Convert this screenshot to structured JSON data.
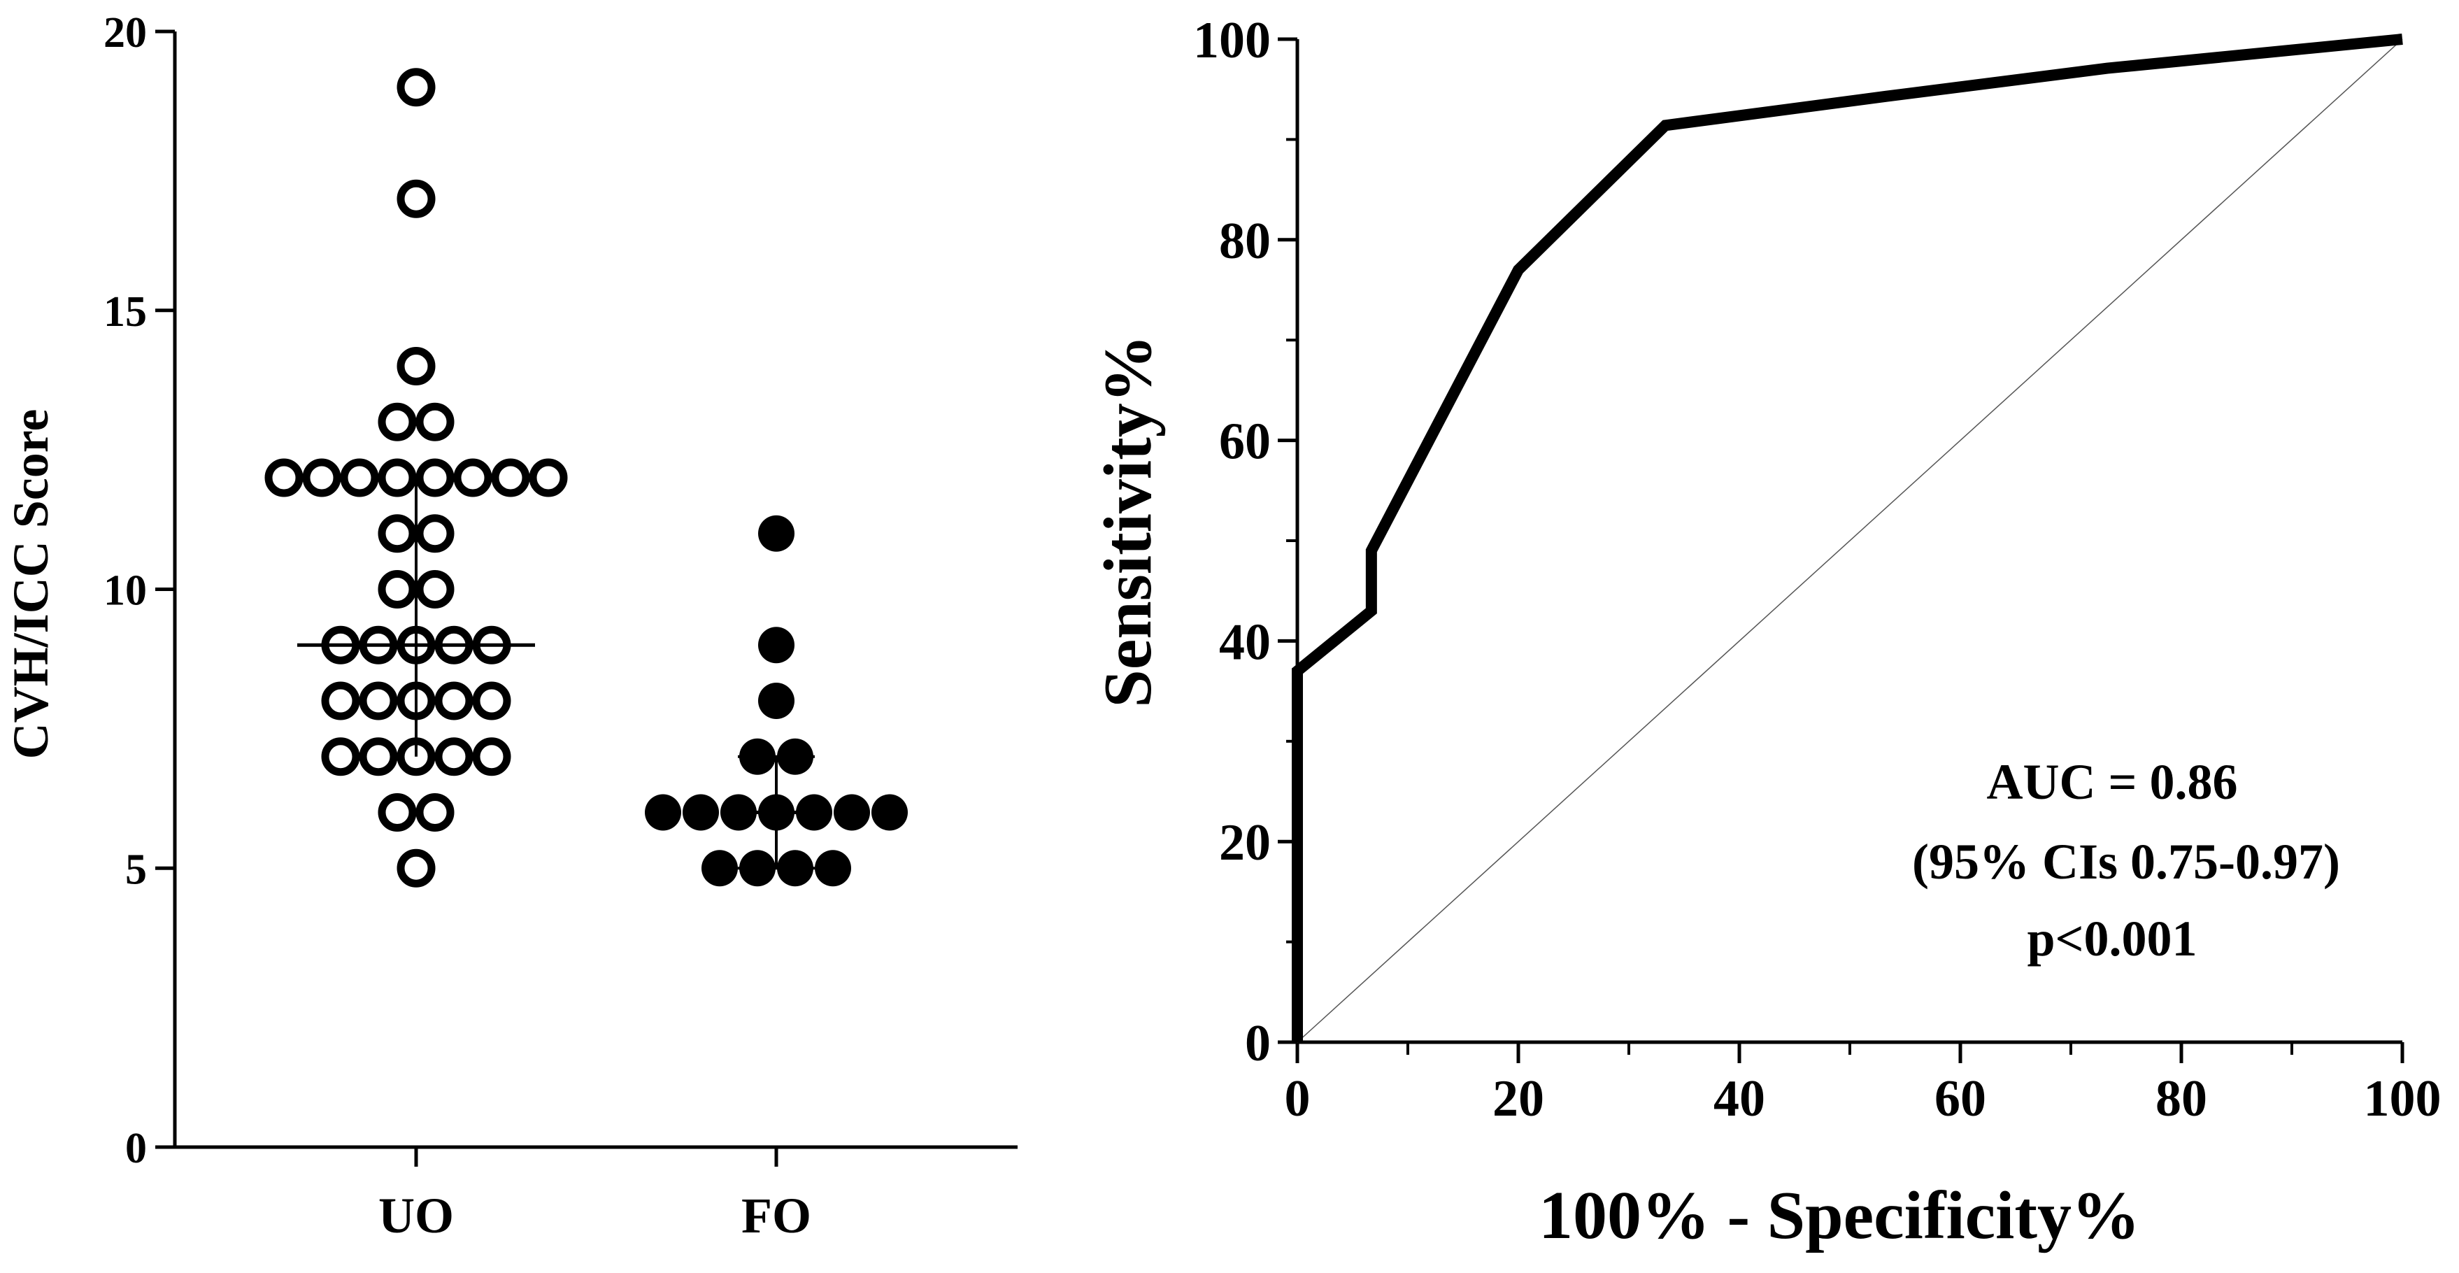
{
  "chart_data": [
    {
      "type": "scatter",
      "subtype": "dot-plot",
      "ylabel": "CVH/ICC Score",
      "xlabel": "",
      "categories": [
        "UO",
        "FO"
      ],
      "ylim": [
        0,
        20
      ],
      "yticks": [
        0,
        5,
        10,
        15,
        20
      ],
      "series": [
        {
          "name": "UO",
          "marker": "open-circle",
          "values": [
            19,
            17,
            14,
            13,
            13,
            12,
            12,
            12,
            12,
            12,
            12,
            12,
            12,
            11,
            11,
            10,
            10,
            9,
            9,
            9,
            9,
            9,
            8,
            8,
            8,
            8,
            8,
            7,
            7,
            7,
            7,
            7,
            6,
            6,
            5
          ],
          "median": 9,
          "iqr": [
            7,
            12
          ]
        },
        {
          "name": "FO",
          "marker": "filled-circle",
          "values": [
            11,
            9,
            8,
            7,
            7,
            6,
            6,
            6,
            6,
            6,
            6,
            6,
            5,
            5,
            5,
            5
          ],
          "median": 6,
          "iqr": [
            5,
            7
          ]
        }
      ]
    },
    {
      "type": "line",
      "subtype": "roc-curve",
      "xlabel": "100% - Specificity%",
      "ylabel": "Sensitivity%",
      "xlim": [
        0,
        100
      ],
      "ylim": [
        0,
        100
      ],
      "xticks": [
        0,
        20,
        40,
        60,
        80,
        100
      ],
      "yticks": [
        0,
        20,
        40,
        60,
        80,
        100
      ],
      "series": [
        {
          "name": "ROC",
          "x": [
            0,
            0,
            6.7,
            6.7,
            20,
            33.3,
            53.3,
            73.3,
            100
          ],
          "y": [
            0,
            37,
            43,
            49,
            77,
            91.4,
            94.3,
            97.1,
            100
          ]
        },
        {
          "name": "Reference line",
          "x": [
            0,
            100
          ],
          "y": [
            0,
            100
          ]
        }
      ],
      "annotation": [
        "AUC = 0.86",
        "(95% CIs 0.75-0.97)",
        "p<0.001"
      ]
    }
  ]
}
